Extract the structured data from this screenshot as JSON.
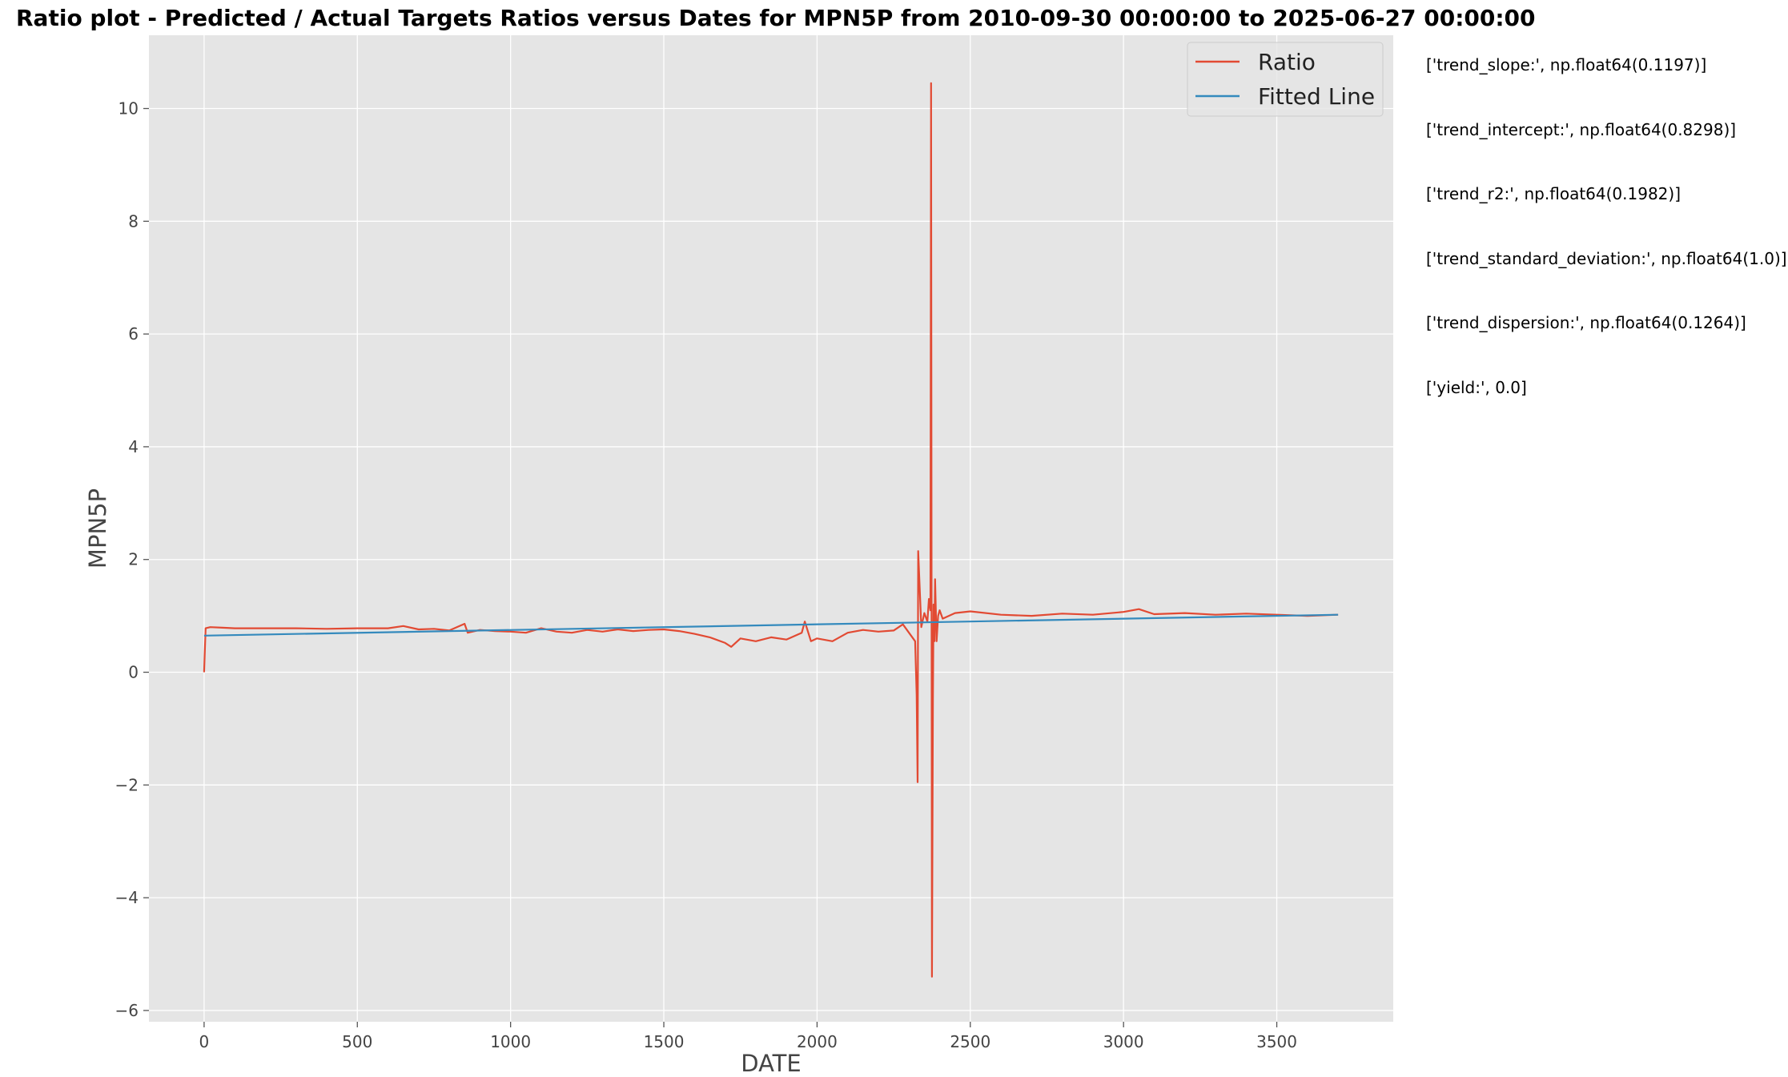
{
  "chart_data": {
    "type": "line",
    "title": "Ratio plot - Predicted / Actual Targets Ratios versus Dates for MPN5P from 2010-09-30 00:00:00 to 2025-06-27 00:00:00",
    "xlabel": "DATE",
    "ylabel": "MPN5P",
    "xlim": [
      -180,
      3880
    ],
    "ylim": [
      -6.2,
      11.3
    ],
    "x_ticks": [
      0,
      500,
      1000,
      1500,
      2000,
      2500,
      3000,
      3500
    ],
    "y_ticks": [
      -6,
      -4,
      -2,
      0,
      2,
      4,
      6,
      8,
      10
    ],
    "grid": true,
    "legend_position": "top-right",
    "series": [
      {
        "name": "Ratio",
        "color": "#e24a33",
        "x": [
          0,
          5,
          20,
          60,
          100,
          200,
          300,
          400,
          500,
          600,
          650,
          700,
          750,
          800,
          850,
          860,
          900,
          950,
          1000,
          1050,
          1100,
          1150,
          1200,
          1250,
          1300,
          1350,
          1400,
          1450,
          1500,
          1550,
          1600,
          1650,
          1700,
          1720,
          1750,
          1800,
          1850,
          1900,
          1950,
          1960,
          1980,
          2000,
          2050,
          2100,
          2150,
          2200,
          2250,
          2280,
          2300,
          2320,
          2325,
          2328,
          2330,
          2340,
          2350,
          2360,
          2365,
          2370,
          2372,
          2375,
          2378,
          2380,
          2383,
          2385,
          2390,
          2395,
          2400,
          2410,
          2450,
          2500,
          2600,
          2700,
          2800,
          2900,
          3000,
          3050,
          3100,
          3200,
          3300,
          3400,
          3500,
          3600,
          3700
        ],
        "y": [
          0.0,
          0.78,
          0.8,
          0.79,
          0.78,
          0.78,
          0.78,
          0.77,
          0.78,
          0.78,
          0.82,
          0.76,
          0.77,
          0.74,
          0.86,
          0.7,
          0.75,
          0.73,
          0.72,
          0.7,
          0.78,
          0.72,
          0.7,
          0.75,
          0.72,
          0.76,
          0.73,
          0.75,
          0.76,
          0.73,
          0.68,
          0.62,
          0.52,
          0.45,
          0.6,
          0.55,
          0.62,
          0.58,
          0.7,
          0.9,
          0.55,
          0.6,
          0.55,
          0.7,
          0.75,
          0.72,
          0.74,
          0.85,
          0.7,
          0.55,
          -0.4,
          -1.95,
          2.15,
          0.8,
          1.05,
          0.9,
          1.3,
          1.1,
          10.45,
          -5.4,
          -0.5,
          1.2,
          0.55,
          1.65,
          0.55,
          1.0,
          1.1,
          0.95,
          1.05,
          1.08,
          1.02,
          1.0,
          1.04,
          1.02,
          1.07,
          1.12,
          1.03,
          1.05,
          1.02,
          1.04,
          1.02,
          1.0,
          1.02
        ]
      },
      {
        "name": "Fitted Line",
        "color": "#348abd",
        "x": [
          0,
          3700
        ],
        "y": [
          0.65,
          1.02
        ]
      }
    ]
  },
  "stats": [
    "['trend_slope:', np.float64(0.1197)]",
    "['trend_intercept:', np.float64(0.8298)]",
    "['trend_r2:', np.float64(0.1982)]",
    "['trend_standard_deviation:', np.float64(1.0)]",
    "['trend_dispersion:', np.float64(0.1264)]",
    "['yield:', 0.0]"
  ]
}
